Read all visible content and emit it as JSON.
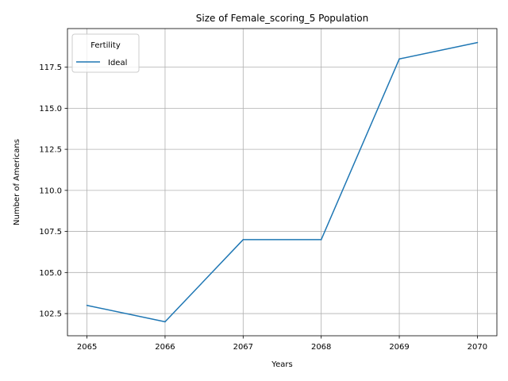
{
  "chart_data": {
    "type": "line",
    "title": "Size of Female_scoring_5 Population",
    "xlabel": "Years",
    "ylabel": "Number of Americans",
    "x": [
      2065,
      2066,
      2067,
      2068,
      2069,
      2070
    ],
    "xticks": [
      "2065",
      "2066",
      "2067",
      "2068",
      "2069",
      "2070"
    ],
    "yticks": [
      "102.5",
      "105.0",
      "107.5",
      "110.0",
      "112.5",
      "115.0",
      "117.5"
    ],
    "xlim": [
      2064.75,
      2070.25
    ],
    "ylim": [
      101.15,
      119.85
    ],
    "grid": true,
    "legend": {
      "title": "Fertility",
      "placement": "top-left"
    },
    "series": [
      {
        "name": "Ideal",
        "color": "#1f77b4",
        "values": [
          103,
          102,
          107,
          107,
          118,
          119
        ]
      }
    ]
  }
}
